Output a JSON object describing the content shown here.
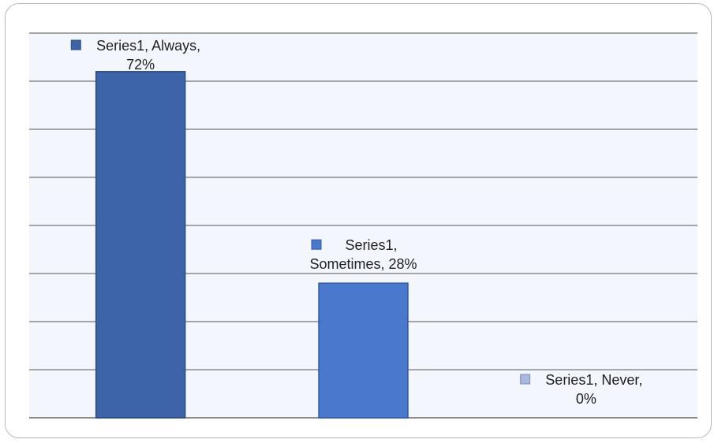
{
  "chart_data": {
    "type": "bar",
    "categories": [
      "Always",
      "Sometimes",
      "Never"
    ],
    "series": [
      {
        "values": [
          72,
          28,
          0
        ]
      }
    ],
    "data_labels": [
      {
        "lines": [
          "Series1, Always,",
          "72%"
        ]
      },
      {
        "lines": [
          "Series1,",
          "Sometimes, 28%"
        ]
      },
      {
        "lines": [
          "Series1, Never,",
          "0%"
        ]
      }
    ],
    "unit": "%",
    "ylim": [
      0,
      80
    ],
    "gridlines": 8,
    "grid": true,
    "legend": false,
    "title": "",
    "xlabel": "",
    "ylabel": "",
    "colors": {
      "bars": [
        "#3e64a8",
        "#4a78cc",
        "#a9b8dc"
      ],
      "bar_edge": [
        "#2a4a82",
        "#2f5aa6",
        "#7f8fb8"
      ],
      "plot_bg": "#f3f6fd",
      "grid": "#8a8a8a",
      "label_text": "#1f1f1f"
    }
  }
}
